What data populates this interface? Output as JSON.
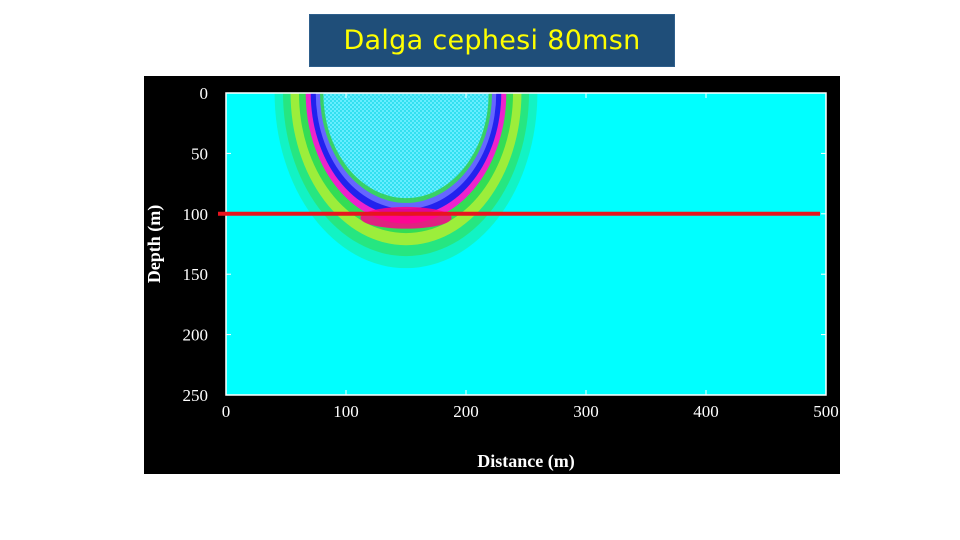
{
  "title": "Dalga cephesi 80msn",
  "colors": {
    "background": "#00ffff",
    "frame": "#000000",
    "title_bg": "#1f4e79",
    "title_text": "#ffff00",
    "marker_line": "#e8141e",
    "wave_colors": [
      "#33dd55",
      "#aaee33",
      "#2222ee",
      "#ee22cc",
      "#ff0088",
      "#6666ff"
    ]
  },
  "chart_data": {
    "type": "heatmap",
    "xlabel": "Distance (m)",
    "ylabel": "Depth (m)",
    "xlim": [
      0,
      500
    ],
    "ylim": [
      0,
      250
    ],
    "y_inverted": true,
    "x_ticks": [
      0,
      100,
      200,
      300,
      400,
      500
    ],
    "y_ticks": [
      0,
      50,
      100,
      150,
      200,
      250
    ],
    "wavefront": {
      "source_x": 150,
      "source_depth": 0,
      "radius": 100
    },
    "horizontal_line": {
      "depth": 100,
      "x_start": 0,
      "x_end": 495
    },
    "grid": false
  }
}
